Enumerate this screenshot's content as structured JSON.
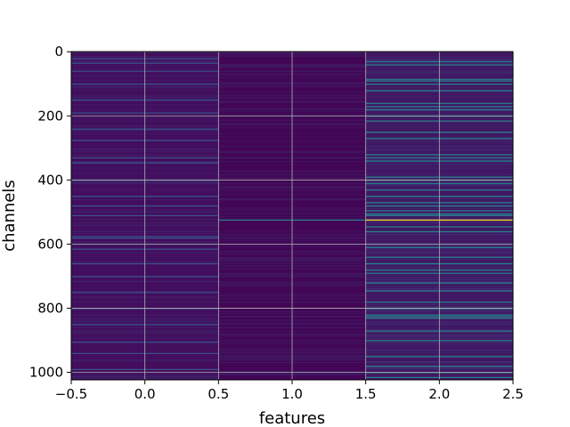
{
  "chart_data": {
    "type": "heatmap",
    "title": "",
    "xlabel": "features",
    "ylabel": "channels",
    "xlim": [
      -0.5,
      2.5
    ],
    "ylim": [
      1023.5,
      -0.5
    ],
    "x_ticks": [
      "−0.5",
      "0.0",
      "0.5",
      "1.0",
      "1.5",
      "2.0",
      "2.5"
    ],
    "y_ticks": [
      "0",
      "200",
      "400",
      "600",
      "800",
      "1000"
    ],
    "x_tick_values": [
      -0.5,
      0.0,
      0.5,
      1.0,
      1.5,
      2.0,
      2.5
    ],
    "y_tick_values": [
      0,
      200,
      400,
      600,
      800,
      1000
    ],
    "grid": true,
    "colormap": "viridis",
    "n_channels": 1024,
    "features": [
      0,
      1,
      2
    ],
    "column_base_level": [
      0.04,
      0.015,
      0.07
    ],
    "highlights": [
      {
        "feature": 0,
        "channels": [
          20,
          35,
          60,
          100,
          150,
          190,
          240,
          275,
          330,
          345,
          400,
          450,
          480,
          510,
          575,
          580,
          615,
          660,
          700,
          750,
          800,
          850,
          905,
          940,
          990
        ],
        "level": 0.25
      },
      {
        "feature": 1,
        "channels": [
          60,
          200,
          330,
          420,
          524,
          600,
          700,
          780,
          880,
          960
        ],
        "level": 0.08
      },
      {
        "feature": 1,
        "channels": [
          524
        ],
        "level": 0.45
      },
      {
        "feature": 2,
        "channels": [
          30,
          40,
          85,
          90,
          100,
          120,
          160,
          170,
          180,
          200,
          215,
          250,
          270,
          320,
          330,
          340,
          390,
          400,
          410,
          430,
          450,
          470,
          480,
          495,
          505,
          510,
          545,
          560,
          610,
          640,
          660,
          680,
          690,
          720,
          745,
          780,
          800,
          820,
          825,
          830,
          870,
          900,
          950,
          980,
          1000,
          1015
        ],
        "level": 0.45
      },
      {
        "feature": 2,
        "channels": [
          524
        ],
        "level": 1.0
      }
    ]
  }
}
